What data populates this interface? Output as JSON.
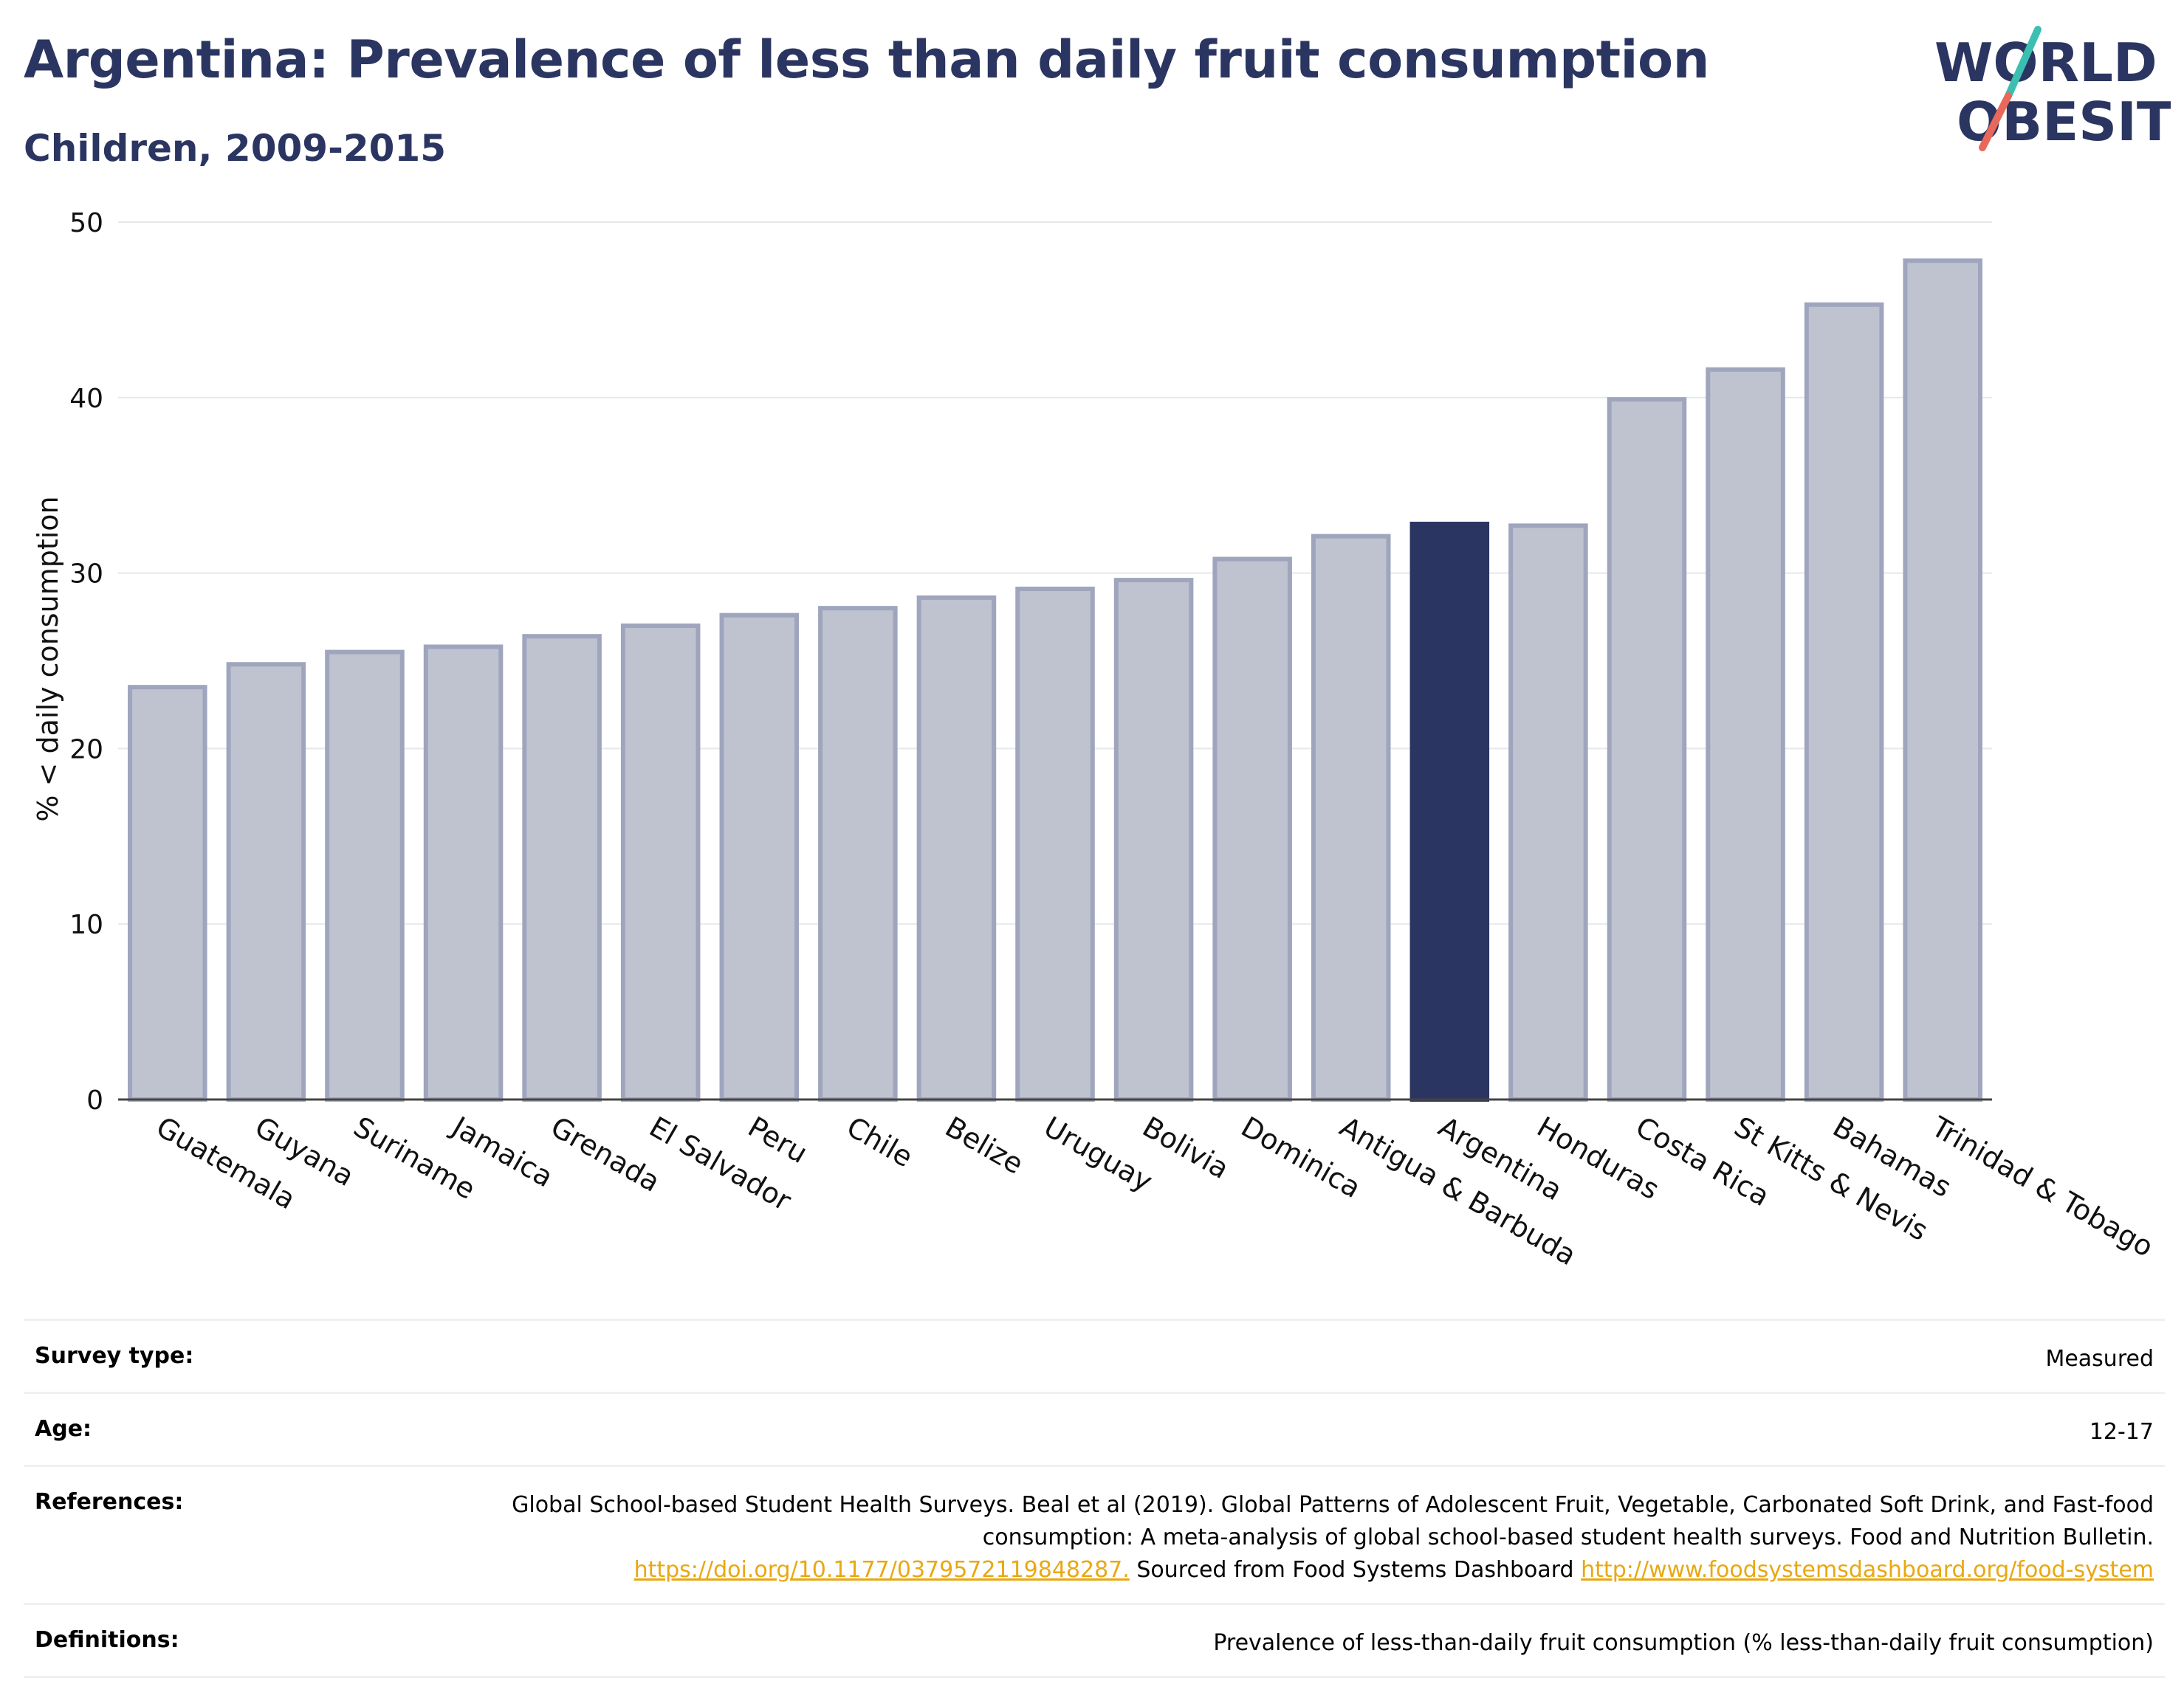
{
  "header": {
    "title": "Argentina: Prevalence of less than daily fruit consumption",
    "subtitle": "Children, 2009-2015",
    "logo_line1": "WORLD",
    "logo_line2": "OBESITY"
  },
  "colors": {
    "highlight": "#2b3561",
    "bar_fill": "#bfc3d0",
    "bar_stroke": "#9fa5bd",
    "logo_slash_teal": "#3bbfb0",
    "logo_slash_red": "#e8685a",
    "link": "#e8a812"
  },
  "chart_data": {
    "type": "bar",
    "title": "Argentina: Prevalence of less than daily fruit consumption",
    "subtitle": "Children, 2009-2015",
    "xlabel": "",
    "ylabel": "% < daily consumption",
    "ylim": [
      0,
      50
    ],
    "yticks": [
      0,
      10,
      20,
      30,
      40,
      50
    ],
    "grid": true,
    "highlight": "Argentina",
    "categories": [
      "Guatemala",
      "Guyana",
      "Suriname",
      "Jamaica",
      "Grenada",
      "El Salvador",
      "Peru",
      "Chile",
      "Belize",
      "Uruguay",
      "Bolivia",
      "Dominica",
      "Antigua & Barbuda",
      "Argentina",
      "Honduras",
      "Costa Rica",
      "St Kitts & Nevis",
      "Bahamas",
      "Trinidad & Tobago"
    ],
    "values": [
      23.5,
      24.8,
      25.5,
      25.8,
      26.4,
      27.0,
      27.6,
      28.0,
      28.6,
      29.1,
      29.6,
      30.8,
      32.1,
      32.8,
      32.7,
      39.9,
      41.6,
      45.3,
      47.8
    ]
  },
  "meta": {
    "survey_type": {
      "label": "Survey type:",
      "value": "Measured"
    },
    "age": {
      "label": "Age:",
      "value": "12-17"
    },
    "references": {
      "label": "References:",
      "text1": "Global School-based Student Health Surveys. Beal et al (2019). Global Patterns of Adolescent Fruit, Vegetable, Carbonated Soft Drink, and Fast-food consumption: A meta-analysis of global school-based student health surveys. Food and Nutrition Bulletin.",
      "link1": "https://doi.org/10.1177/0379572119848287.",
      "text2": "Sourced from Food Systems Dashboard",
      "link2": "http://www.foodsystemsdashboard.org/food-system"
    },
    "definitions": {
      "label": "Definitions:",
      "value": "Prevalence of less-than-daily fruit consumption (% less-than-daily fruit consumption)"
    }
  }
}
